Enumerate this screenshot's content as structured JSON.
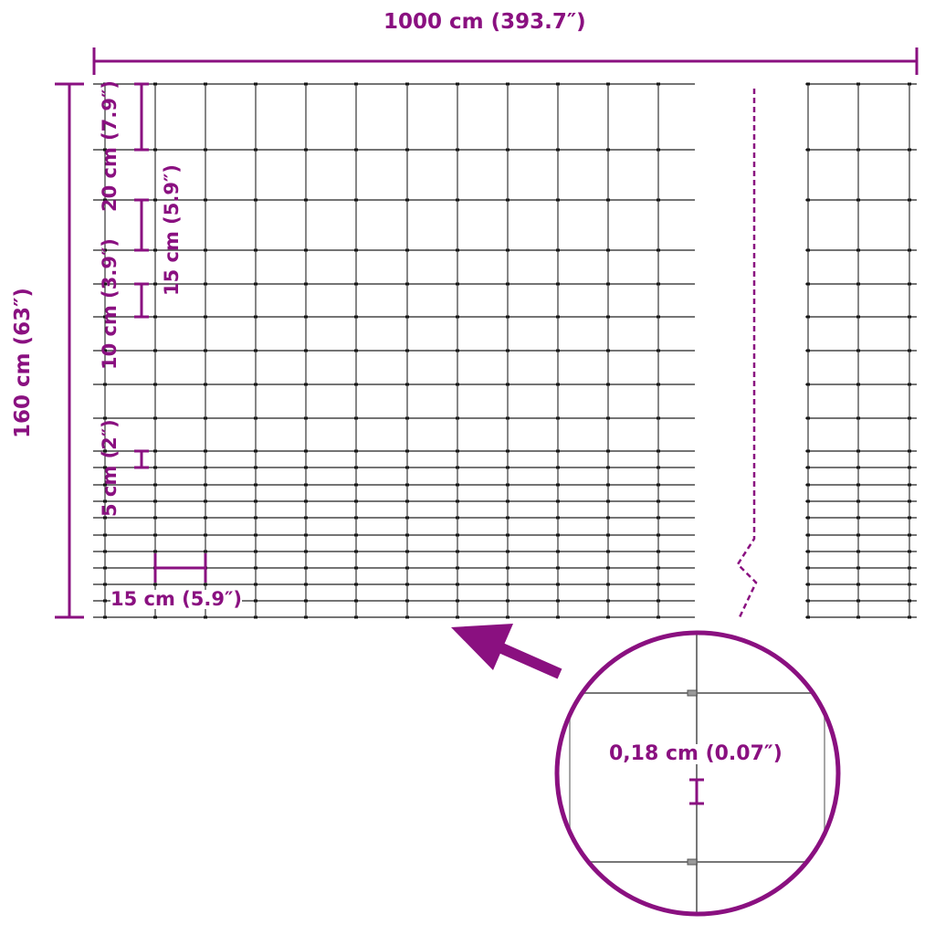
{
  "accent_color": "#8a1080",
  "labels": {
    "width": "1000 cm (393.7″)",
    "height": "160 cm (63″)",
    "gap_20": "20 cm (7.9″)",
    "gap_15_vertical": "15 cm (5.9″)",
    "gap_10": "10 cm (3.9″)",
    "gap_5": "5 cm (2″)",
    "gap_15_horizontal": "15 cm (5.9″)",
    "wire_diameter": "0,18 cm (0.07″)"
  }
}
